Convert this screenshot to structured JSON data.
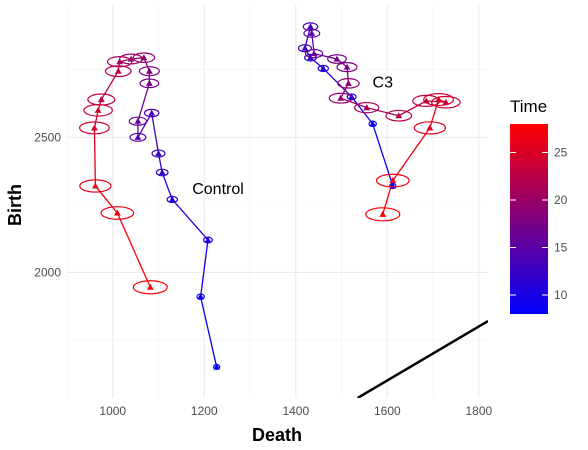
{
  "chart_data": {
    "type": "scatter",
    "xlabel": "Death",
    "ylabel": "Birth",
    "xlim": [
      900,
      1820
    ],
    "ylim": [
      1535,
      2990
    ],
    "x_ticks": [
      1000,
      1200,
      1400,
      1600,
      1800
    ],
    "y_ticks": [
      2000,
      2500
    ],
    "grid": true,
    "diagonal_line": true,
    "legend": {
      "title": "Time",
      "placement": "right",
      "type": "colorbar",
      "range": [
        8,
        28
      ],
      "ticks": [
        10,
        15,
        20,
        25
      ],
      "low_color": "#0000ff",
      "high_color": "#ff0000"
    },
    "series": [
      {
        "label": "Control",
        "label_pos": {
          "x": 1230,
          "y": 2290
        },
        "points": [
          {
            "x": 1227,
            "y": 1650,
            "t": 8
          },
          {
            "x": 1192,
            "y": 1910,
            "t": 9
          },
          {
            "x": 1208,
            "y": 2120,
            "t": 10
          },
          {
            "x": 1130,
            "y": 2270,
            "t": 11
          },
          {
            "x": 1108,
            "y": 2370,
            "t": 12
          },
          {
            "x": 1100,
            "y": 2440,
            "t": 13
          },
          {
            "x": 1085,
            "y": 2590,
            "t": 14
          },
          {
            "x": 1055,
            "y": 2500,
            "t": 15
          },
          {
            "x": 1055,
            "y": 2560,
            "t": 16
          },
          {
            "x": 1080,
            "y": 2700,
            "t": 17
          },
          {
            "x": 1080,
            "y": 2745,
            "t": 18
          },
          {
            "x": 1068,
            "y": 2795,
            "t": 19
          },
          {
            "x": 1040,
            "y": 2790,
            "t": 20
          },
          {
            "x": 1015,
            "y": 2780,
            "t": 21
          },
          {
            "x": 1012,
            "y": 2745,
            "t": 22
          },
          {
            "x": 975,
            "y": 2640,
            "t": 23
          },
          {
            "x": 968,
            "y": 2600,
            "t": 24
          },
          {
            "x": 960,
            "y": 2535,
            "t": 25
          },
          {
            "x": 962,
            "y": 2320,
            "t": 26
          },
          {
            "x": 1010,
            "y": 2220,
            "t": 27
          },
          {
            "x": 1082,
            "y": 1945,
            "t": 28
          }
        ]
      },
      {
        "label": "C3",
        "label_pos": {
          "x": 1590,
          "y": 2685
        },
        "points": [
          {
            "x": 1612,
            "y": 2320,
            "t": 8
          },
          {
            "x": 1568,
            "y": 2550,
            "t": 9
          },
          {
            "x": 1522,
            "y": 2650,
            "t": 10
          },
          {
            "x": 1460,
            "y": 2755,
            "t": 11
          },
          {
            "x": 1432,
            "y": 2795,
            "t": 12
          },
          {
            "x": 1420,
            "y": 2830,
            "t": 13
          },
          {
            "x": 1432,
            "y": 2910,
            "t": 14
          },
          {
            "x": 1435,
            "y": 2885,
            "t": 15
          },
          {
            "x": 1440,
            "y": 2810,
            "t": 16
          },
          {
            "x": 1490,
            "y": 2790,
            "t": 17
          },
          {
            "x": 1512,
            "y": 2760,
            "t": 18
          },
          {
            "x": 1515,
            "y": 2700,
            "t": 19
          },
          {
            "x": 1498,
            "y": 2645,
            "t": 20
          },
          {
            "x": 1555,
            "y": 2610,
            "t": 21
          },
          {
            "x": 1625,
            "y": 2580,
            "t": 22
          },
          {
            "x": 1685,
            "y": 2635,
            "t": 23
          },
          {
            "x": 1728,
            "y": 2630,
            "t": 24
          },
          {
            "x": 1712,
            "y": 2640,
            "t": 25
          },
          {
            "x": 1693,
            "y": 2535,
            "t": 26
          },
          {
            "x": 1612,
            "y": 2340,
            "t": 27
          },
          {
            "x": 1590,
            "y": 2215,
            "t": 28
          }
        ]
      }
    ]
  }
}
